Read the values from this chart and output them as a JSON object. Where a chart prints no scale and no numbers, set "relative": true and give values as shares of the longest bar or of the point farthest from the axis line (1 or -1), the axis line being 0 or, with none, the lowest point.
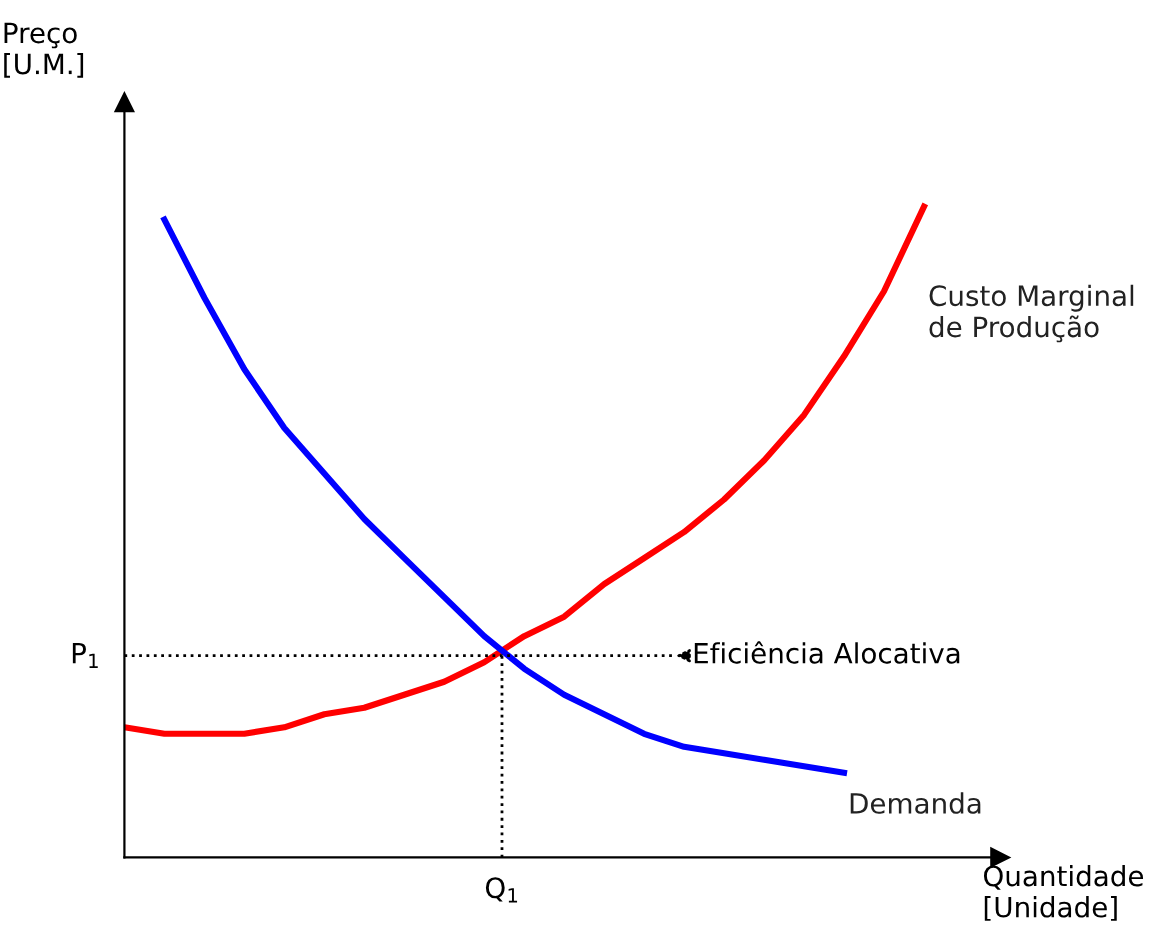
{
  "chart_data": {
    "type": "line",
    "relative": true,
    "xlabel": "Quantidade\n[Unidade]",
    "ylabel": "Preço\n[U.M.]",
    "categories": [
      null,
      null,
      null,
      null,
      null,
      null,
      null,
      null,
      null,
      null,
      null,
      null,
      null,
      null,
      null,
      null,
      null,
      null,
      null,
      null,
      null
    ],
    "series": [
      {
        "name": "Custo Marginal\nde Produção",
        "color": "#ff0000",
        "values": [
          0.2,
          0.19,
          0.19,
          0.19,
          0.2,
          0.22,
          0.23,
          0.25,
          0.27,
          0.3,
          0.34,
          0.37,
          0.42,
          0.46,
          0.5,
          0.55,
          0.61,
          0.68,
          0.77,
          0.87,
          1.0
        ]
      },
      {
        "name": "Demanda",
        "color": "#0000ff",
        "values": [
          null,
          0.98,
          0.86,
          0.75,
          0.66,
          0.59,
          0.52,
          0.46,
          0.4,
          0.34,
          0.29,
          0.25,
          0.22,
          0.19,
          0.17,
          0.16,
          0.15,
          0.14,
          0.13,
          null,
          null
        ]
      }
    ],
    "ref_lines": [
      {
        "axis": "y",
        "value": 0.31,
        "label": "P$_{1}$",
        "line_style": "dotted",
        "color": "#000000"
      }
    ],
    "annotations": [
      "Eficiência Alocativa",
      "Q$_{1}$"
    ],
    "legend": false,
    "marker": "none",
    "line_style": "solid"
  }
}
